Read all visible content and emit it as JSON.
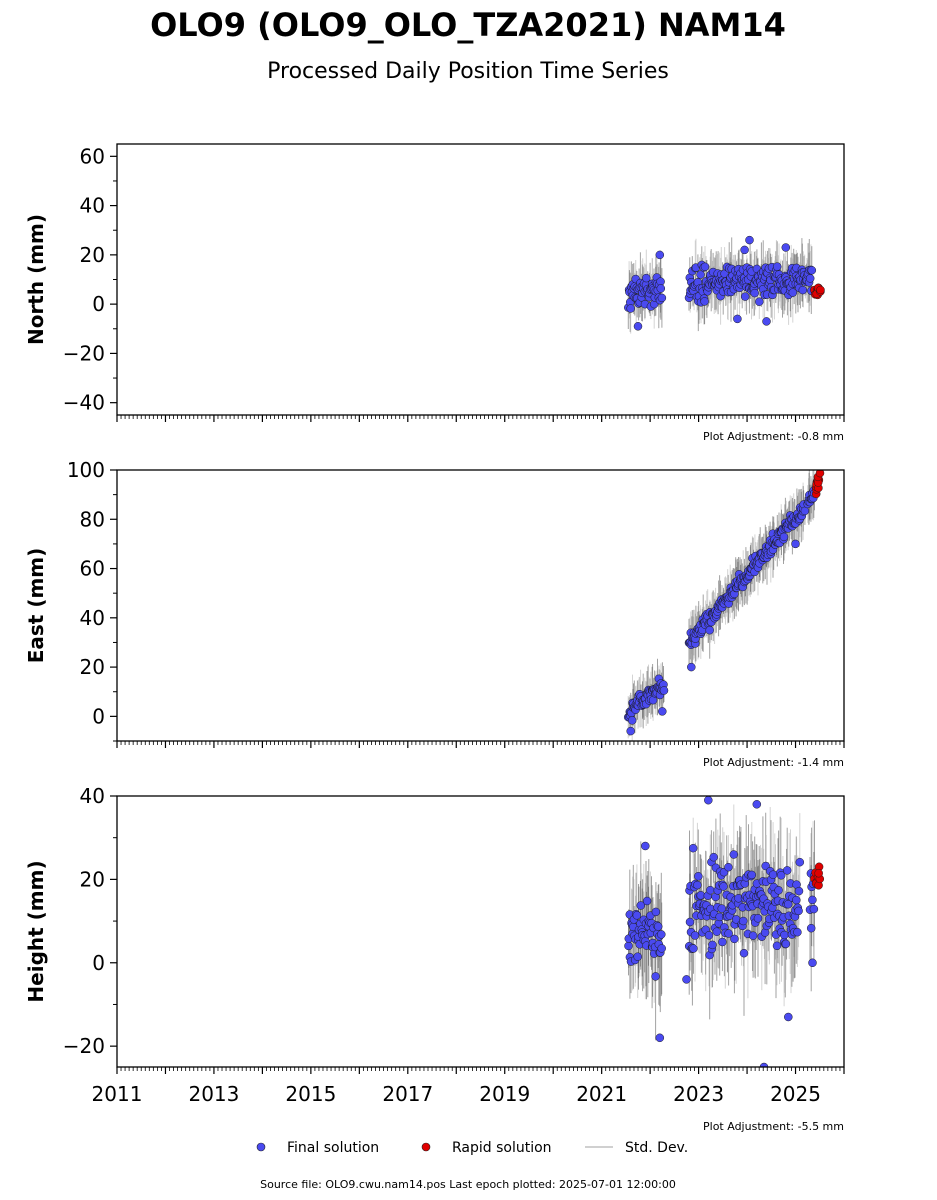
{
  "title": "OLO9 (OLO9_OLO_TZA2021) NAM14",
  "subtitle": "Processed Daily Position Time Series",
  "footer": "Source file: OLO9.cwu.nam14.pos  Last epoch plotted: 2025-07-01 12:00:00",
  "legend": {
    "final": "Final solution",
    "rapid": "Rapid solution",
    "std": "Std. Dev."
  },
  "colors": {
    "final": "#4a4af0",
    "rapid": "#e00000",
    "std": "#b0b0b0",
    "stddark": "#555555"
  },
  "chart_data": [
    {
      "type": "scatter",
      "ylabel": "North (mm)",
      "adjustment": "Plot Adjustment: -0.8 mm",
      "xlim": [
        2011,
        2026
      ],
      "ylim": [
        -45,
        65
      ],
      "yticks": [
        -40,
        -20,
        0,
        20,
        40,
        60
      ],
      "ytick_labels": [
        "−40",
        "−20",
        "0",
        "20",
        "40",
        "60"
      ],
      "std_dev_mm": 10,
      "final_segments": [
        {
          "x": [
            2021.55,
            2022.25
          ],
          "y": [
            5,
            6
          ],
          "scatter": 5
        },
        {
          "x": [
            2022.8,
            2025.35
          ],
          "y": [
            8,
            10
          ],
          "scatter": 6
        }
      ],
      "rapid": {
        "x": [
          2025.4,
          2025.5
        ],
        "y": [
          5,
          5
        ]
      },
      "outliers": [
        {
          "x": 2021.75,
          "y": -9
        },
        {
          "x": 2022.2,
          "y": 20
        },
        {
          "x": 2024.05,
          "y": 26
        },
        {
          "x": 2023.95,
          "y": 22
        },
        {
          "x": 2024.8,
          "y": 23
        },
        {
          "x": 2024.4,
          "y": -7
        },
        {
          "x": 2023.8,
          "y": -6
        }
      ]
    },
    {
      "type": "scatter",
      "ylabel": "East (mm)",
      "adjustment": "Plot Adjustment: -1.4 mm",
      "xlim": [
        2011,
        2026
      ],
      "ylim": [
        -10,
        100
      ],
      "yticks": [
        0,
        20,
        40,
        60,
        80,
        100
      ],
      "ytick_labels": [
        "0",
        "20",
        "40",
        "60",
        "80",
        "100"
      ],
      "std_dev_mm": 9,
      "final_segments": [
        {
          "x": [
            2021.55,
            2022.3
          ],
          "y": [
            1,
            13
          ],
          "scatter": 3
        },
        {
          "x": [
            2022.8,
            2025.2
          ],
          "y": [
            30,
            85
          ],
          "scatter": 3
        },
        {
          "x": [
            2025.25,
            2025.4
          ],
          "y": [
            86,
            92
          ],
          "scatter": 2
        }
      ],
      "rapid": {
        "x": [
          2025.4,
          2025.5
        ],
        "y": [
          92,
          97
        ]
      },
      "outliers": [
        {
          "x": 2021.6,
          "y": -6
        },
        {
          "x": 2022.25,
          "y": 2
        },
        {
          "x": 2022.85,
          "y": 20
        },
        {
          "x": 2025.0,
          "y": 70
        }
      ]
    },
    {
      "type": "scatter",
      "ylabel": "Height (mm)",
      "adjustment": "Plot Adjustment: -5.5 mm",
      "xlim": [
        2011,
        2026
      ],
      "ylim": [
        -25,
        40
      ],
      "yticks": [
        -20,
        0,
        20,
        40
      ],
      "ytick_labels": [
        "−20",
        "0",
        "20",
        "40"
      ],
      "xticks": [
        2011,
        2013,
        2015,
        2017,
        2019,
        2021,
        2023,
        2025
      ],
      "xtick_labels": [
        "2011",
        "2013",
        "2015",
        "2017",
        "2019",
        "2021",
        "2023",
        "2025"
      ],
      "std_dev_mm": 12,
      "final_segments": [
        {
          "x": [
            2021.55,
            2022.25
          ],
          "y": [
            7,
            6
          ],
          "scatter": 8
        },
        {
          "x": [
            2022.8,
            2025.1
          ],
          "y": [
            14,
            13
          ],
          "scatter": 9
        },
        {
          "x": [
            2025.3,
            2025.4
          ],
          "y": [
            18,
            18
          ],
          "scatter": 6
        }
      ],
      "rapid": {
        "x": [
          2025.42,
          2025.5
        ],
        "y": [
          20,
          20
        ]
      },
      "outliers": [
        {
          "x": 2021.9,
          "y": 28
        },
        {
          "x": 2022.2,
          "y": -18
        },
        {
          "x": 2023.2,
          "y": 39
        },
        {
          "x": 2024.2,
          "y": 38
        },
        {
          "x": 2024.35,
          "y": -25
        },
        {
          "x": 2024.85,
          "y": -13
        },
        {
          "x": 2022.75,
          "y": -4
        },
        {
          "x": 2025.35,
          "y": 0
        }
      ]
    }
  ]
}
